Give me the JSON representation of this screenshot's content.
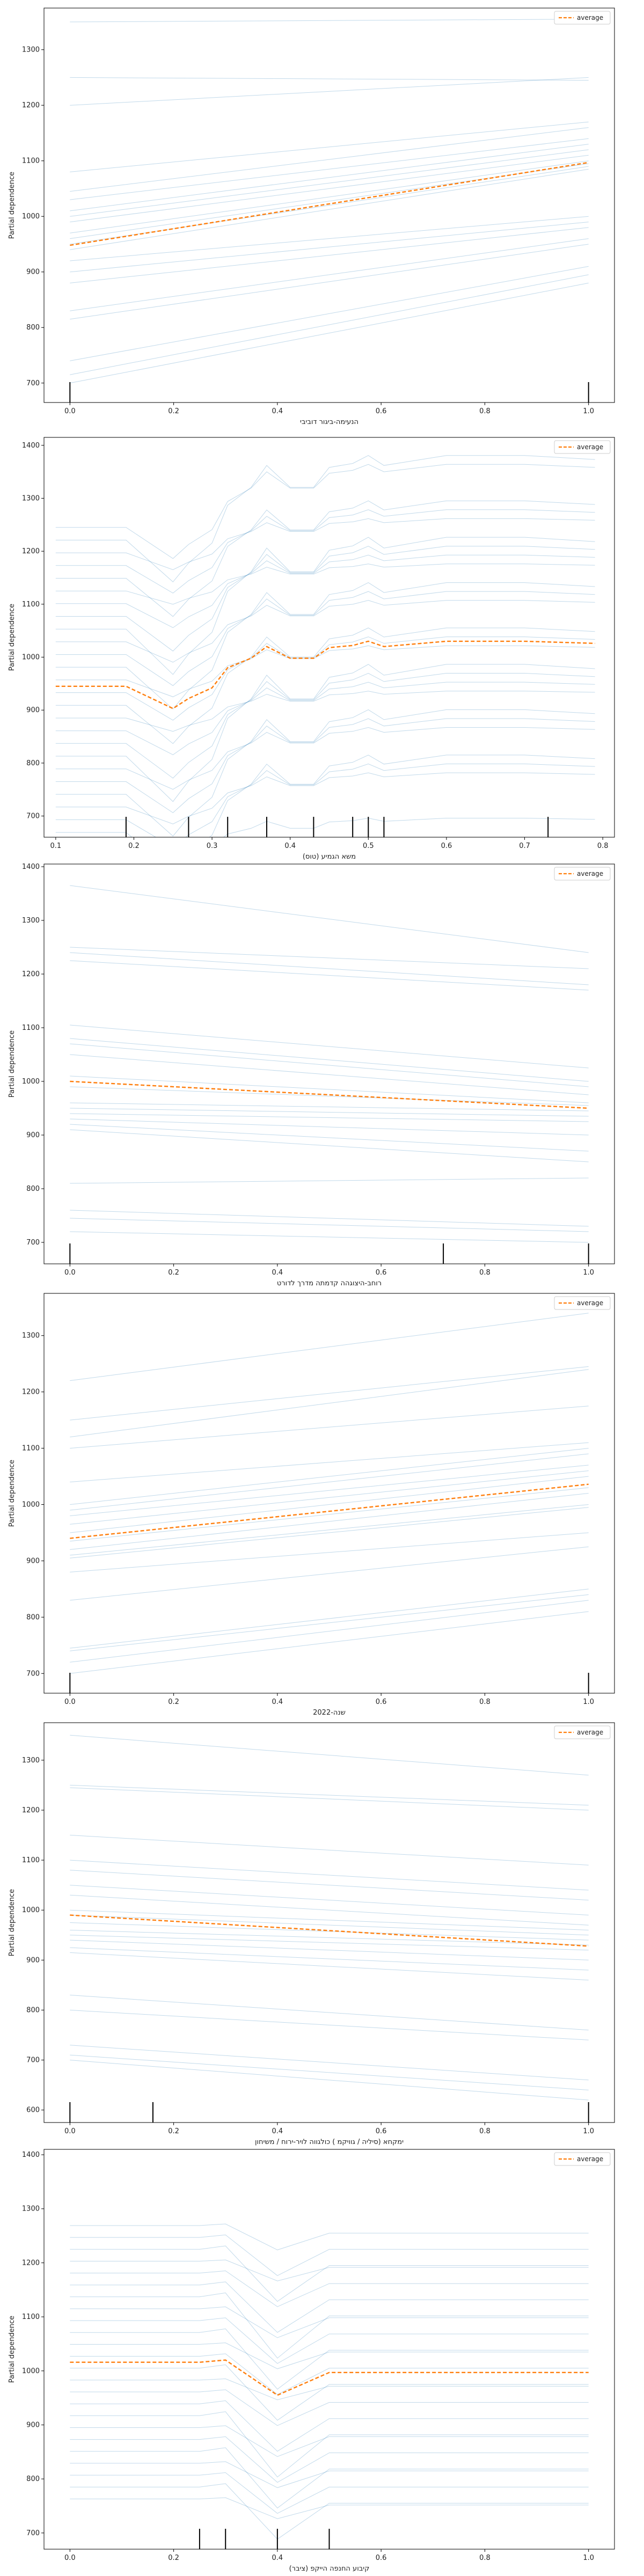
{
  "figure": {
    "ylabel": "Partial dependence",
    "legend_label": "average"
  },
  "colors": {
    "ice": "#1f77b4",
    "average": "#ff7f0e",
    "rug": "#000000"
  },
  "chart_data": [
    {
      "type": "line",
      "xlabel": "הנעימה-ביגור דוביבי",
      "ylabel": "Partial dependence",
      "xlim": [
        -0.05,
        1.05
      ],
      "ylim": [
        665,
        1375
      ],
      "xticks": [
        0.0,
        0.2,
        0.4,
        0.6,
        0.8,
        1.0
      ],
      "yticks": [
        700,
        800,
        900,
        1000,
        1100,
        1200,
        1300
      ],
      "legend": "top-right",
      "x": [
        0,
        1
      ],
      "ice": [
        [
          1350,
          1355
        ],
        [
          1250,
          1245
        ],
        [
          1200,
          1250
        ],
        [
          1080,
          1170
        ],
        [
          1045,
          1160
        ],
        [
          1030,
          1140
        ],
        [
          1010,
          1130
        ],
        [
          1000,
          1120
        ],
        [
          990,
          1110
        ],
        [
          970,
          1100
        ],
        [
          960,
          1095
        ],
        [
          950,
          1090
        ],
        [
          940,
          1085
        ],
        [
          920,
          1000
        ],
        [
          900,
          990
        ],
        [
          880,
          980
        ],
        [
          830,
          960
        ],
        [
          815,
          950
        ],
        [
          740,
          910
        ],
        [
          715,
          895
        ],
        [
          700,
          880
        ]
      ],
      "average": [
        948,
        1097
      ],
      "rug": [
        0,
        1
      ]
    },
    {
      "type": "line",
      "xlabel": "משא הגמיע (טוס)",
      "ylabel": "Partial dependence",
      "xlim": [
        0.085,
        0.815
      ],
      "ylim": [
        660,
        1415
      ],
      "xticks": [
        0.1,
        0.2,
        0.3,
        0.4,
        0.5,
        0.6,
        0.7,
        0.8
      ],
      "yticks": [
        700,
        800,
        900,
        1000,
        1100,
        1200,
        1300,
        1400
      ],
      "legend": "top-right",
      "x": [
        0.1,
        0.19,
        0.25,
        0.27,
        0.3,
        0.32,
        0.35,
        0.37,
        0.4,
        0.43,
        0.45,
        0.48,
        0.5,
        0.52,
        0.6,
        0.7,
        0.79
      ],
      "average": [
        945,
        945,
        903,
        922,
        942,
        980,
        998,
        1020,
        998,
        998,
        1018,
        1022,
        1030,
        1020,
        1030,
        1030,
        1026
      ],
      "rug": [
        0.19,
        0.27,
        0.32,
        0.37,
        0.43,
        0.48,
        0.5,
        0.52,
        0.73
      ]
    },
    {
      "type": "line",
      "xlabel": "רוחב-היצוגהה קדמתה מדרך לדורט",
      "ylabel": "Partial dependence",
      "xlim": [
        -0.05,
        1.05
      ],
      "ylim": [
        660,
        1405
      ],
      "xticks": [
        0.0,
        0.2,
        0.4,
        0.6,
        0.8,
        1.0
      ],
      "yticks": [
        700,
        800,
        900,
        1000,
        1100,
        1200,
        1300,
        1400
      ],
      "legend": "top-right",
      "x": [
        0,
        1
      ],
      "ice": [
        [
          1365,
          1240
        ],
        [
          1250,
          1210
        ],
        [
          1240,
          1180
        ],
        [
          1225,
          1170
        ],
        [
          1105,
          1025
        ],
        [
          1080,
          1000
        ],
        [
          1070,
          990
        ],
        [
          1050,
          975
        ],
        [
          1010,
          960
        ],
        [
          990,
          955
        ],
        [
          960,
          945
        ],
        [
          950,
          935
        ],
        [
          940,
          925
        ],
        [
          930,
          900
        ],
        [
          920,
          870
        ],
        [
          910,
          850
        ],
        [
          810,
          820
        ],
        [
          760,
          730
        ],
        [
          745,
          720
        ],
        [
          720,
          700
        ]
      ],
      "average": [
        1000,
        950
      ],
      "rug": [
        0,
        0.72,
        1
      ]
    },
    {
      "type": "line",
      "xlabel": "שנה-2022",
      "ylabel": "Partial dependence",
      "xlim": [
        -0.05,
        1.05
      ],
      "ylim": [
        665,
        1375
      ],
      "xticks": [
        0.0,
        0.2,
        0.4,
        0.6,
        0.8,
        1.0
      ],
      "yticks": [
        700,
        800,
        900,
        1000,
        1100,
        1200,
        1300
      ],
      "legend": "top-right",
      "x": [
        0,
        1
      ],
      "ice": [
        [
          1220,
          1340
        ],
        [
          1150,
          1245
        ],
        [
          1120,
          1240
        ],
        [
          1100,
          1175
        ],
        [
          1040,
          1110
        ],
        [
          1000,
          1100
        ],
        [
          990,
          1090
        ],
        [
          980,
          1070
        ],
        [
          965,
          1060
        ],
        [
          950,
          1050
        ],
        [
          935,
          1030
        ],
        [
          920,
          1020
        ],
        [
          910,
          1000
        ],
        [
          905,
          995
        ],
        [
          880,
          950
        ],
        [
          830,
          925
        ],
        [
          745,
          850
        ],
        [
          740,
          840
        ],
        [
          720,
          830
        ],
        [
          700,
          810
        ]
      ],
      "average": [
        940,
        1036
      ],
      "rug": [
        0,
        1
      ]
    },
    {
      "type": "line",
      "xlabel": "ימקחא (סיליה / גוויקמ ) כולגווה לויר-ירוח / משיחון",
      "ylabel": "Partial dependence",
      "xlim": [
        -0.05,
        1.05
      ],
      "ylim": [
        575,
        1375
      ],
      "xticks": [
        0.0,
        0.2,
        0.4,
        0.6,
        0.8,
        1.0
      ],
      "yticks": [
        600,
        700,
        800,
        900,
        1000,
        1100,
        1200,
        1300
      ],
      "legend": "top-right",
      "x": [
        0,
        1
      ],
      "ice": [
        [
          1350,
          1270
        ],
        [
          1250,
          1210
        ],
        [
          1245,
          1200
        ],
        [
          1150,
          1090
        ],
        [
          1100,
          1040
        ],
        [
          1080,
          1020
        ],
        [
          1050,
          990
        ],
        [
          1030,
          970
        ],
        [
          1000,
          960
        ],
        [
          990,
          950
        ],
        [
          975,
          940
        ],
        [
          960,
          930
        ],
        [
          950,
          920
        ],
        [
          940,
          900
        ],
        [
          925,
          880
        ],
        [
          915,
          860
        ],
        [
          830,
          760
        ],
        [
          800,
          740
        ],
        [
          730,
          660
        ],
        [
          710,
          640
        ],
        [
          700,
          620
        ]
      ],
      "average": [
        990,
        928
      ],
      "rug": [
        0,
        0.16,
        1
      ]
    },
    {
      "type": "line",
      "xlabel": "קיבוע החנפה הייקפ (ציבר)",
      "ylabel": "Partial dependence",
      "xlim": [
        -0.05,
        1.05
      ],
      "ylim": [
        670,
        1410
      ],
      "xticks": [
        0.0,
        0.2,
        0.4,
        0.6,
        0.8,
        1.0
      ],
      "yticks": [
        700,
        800,
        900,
        1000,
        1100,
        1200,
        1300,
        1400
      ],
      "legend": "top-right",
      "x": [
        0,
        0.25,
        0.3,
        0.4,
        0.5,
        1
      ],
      "average": [
        1016,
        1016,
        1020,
        955,
        997,
        997
      ],
      "rug": [
        0.25,
        0.3,
        0.4,
        0.5
      ]
    }
  ]
}
